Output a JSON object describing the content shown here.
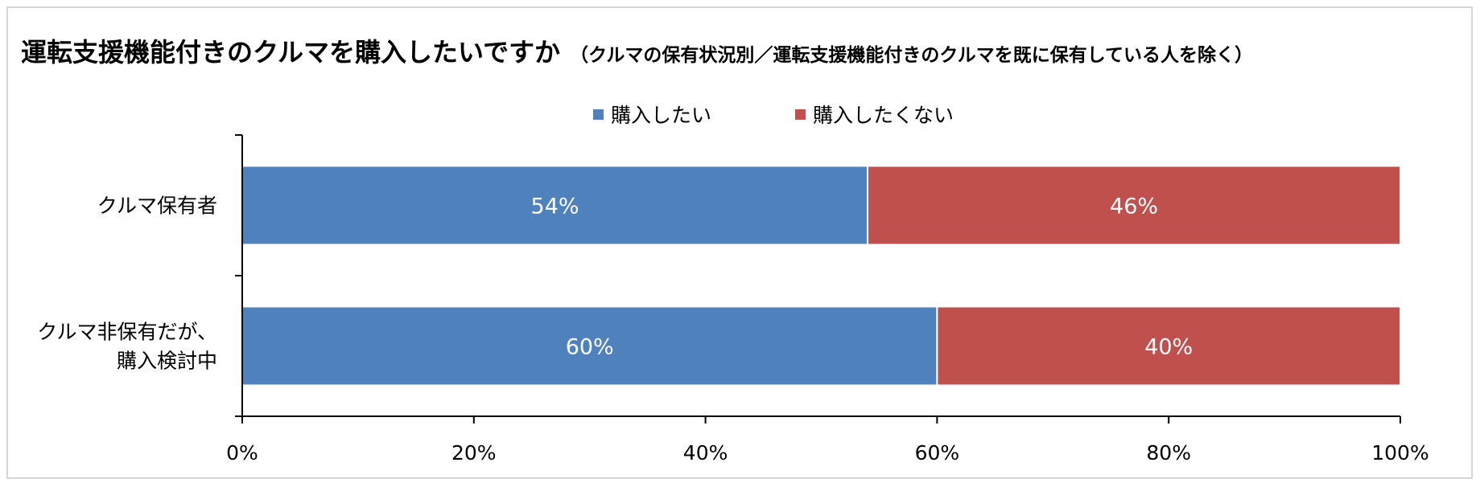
{
  "title": {
    "main": "運転支援機能付きのクルマを購入したいですか",
    "sub": "（クルマの保有状況別／運転支援機能付きのクルマを既に保有している人を除く）"
  },
  "chart_data": {
    "type": "bar",
    "orientation": "horizontal",
    "stacked": "percent",
    "categories": [
      [
        "クルマ保有者"
      ],
      [
        "クルマ非保有だが、",
        "購入検討中"
      ]
    ],
    "series": [
      {
        "name": "購入したい",
        "values": [
          54,
          60
        ],
        "labels": [
          "54%",
          "60%"
        ],
        "color": "#4f81bd"
      },
      {
        "name": "購入したくない",
        "values": [
          46,
          40
        ],
        "labels": [
          "46%",
          "40%"
        ],
        "color": "#c0504d"
      }
    ],
    "xlim": [
      0,
      100
    ],
    "xticks": [
      0,
      20,
      40,
      60,
      80,
      100
    ],
    "xtick_labels": [
      "0%",
      "20%",
      "40%",
      "60%",
      "80%",
      "100%"
    ],
    "legend_position": "top",
    "grid": false
  }
}
